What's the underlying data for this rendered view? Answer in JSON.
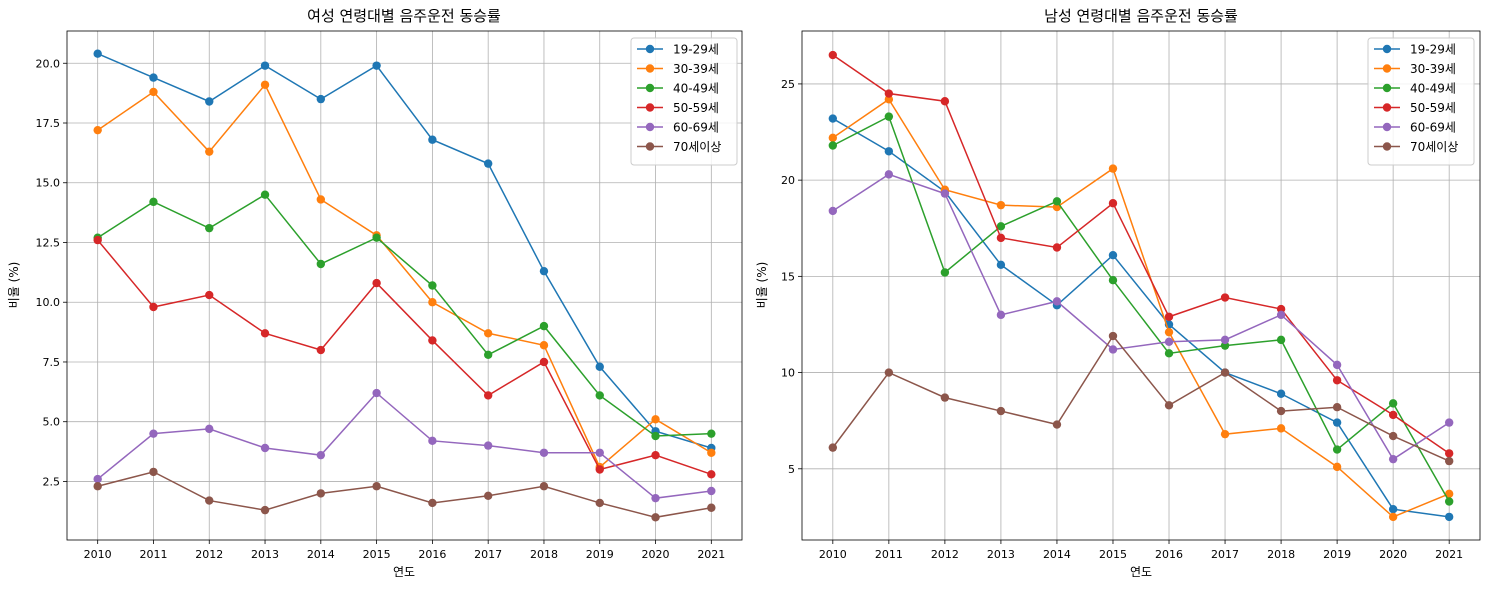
{
  "chart_data": [
    {
      "type": "line",
      "title": "여성 연령대별 음주운전 동승률",
      "xlabel": "연도",
      "ylabel": "비율 (%)",
      "x": [
        2010,
        2011,
        2012,
        2013,
        2014,
        2015,
        2016,
        2017,
        2018,
        2019,
        2020,
        2021
      ],
      "xlim": [
        2009.45,
        2021.55
      ],
      "ylim": [
        0.05,
        21.35
      ],
      "yticks": [
        2.5,
        5.0,
        7.5,
        10.0,
        12.5,
        15.0,
        17.5,
        20.0
      ],
      "ytick_labels": [
        "2.5",
        "5.0",
        "7.5",
        "10.0",
        "12.5",
        "15.0",
        "17.5",
        "20.0"
      ],
      "grid": true,
      "legend_position": "top-right",
      "series": [
        {
          "name": "19-29세",
          "color": "#1f77b4",
          "values": [
            20.4,
            19.4,
            18.4,
            19.9,
            18.5,
            19.9,
            16.8,
            15.8,
            11.3,
            7.3,
            4.6,
            3.9
          ]
        },
        {
          "name": "30-39세",
          "color": "#ff7f0e",
          "values": [
            17.2,
            18.8,
            16.3,
            19.1,
            14.3,
            12.8,
            10.0,
            8.7,
            8.2,
            3.1,
            5.1,
            3.7
          ]
        },
        {
          "name": "40-49세",
          "color": "#2ca02c",
          "values": [
            12.7,
            14.2,
            13.1,
            14.5,
            11.6,
            12.7,
            10.7,
            7.8,
            9.0,
            6.1,
            4.4,
            4.5
          ]
        },
        {
          "name": "50-59세",
          "color": "#d62728",
          "values": [
            12.6,
            9.8,
            10.3,
            8.7,
            8.0,
            10.8,
            8.4,
            6.1,
            7.5,
            3.0,
            3.6,
            2.8
          ]
        },
        {
          "name": "60-69세",
          "color": "#9467bd",
          "values": [
            2.6,
            4.5,
            4.7,
            3.9,
            3.6,
            6.2,
            4.2,
            4.0,
            3.7,
            3.7,
            1.8,
            2.1
          ]
        },
        {
          "name": "70세이상",
          "color": "#8c564b",
          "values": [
            2.3,
            2.9,
            1.7,
            1.3,
            2.0,
            2.3,
            1.6,
            1.9,
            2.3,
            1.6,
            1.0,
            1.4
          ]
        }
      ]
    },
    {
      "type": "line",
      "title": "남성 연령대별 음주운전 동승률",
      "xlabel": "연도",
      "ylabel": "비율 (%)",
      "x": [
        2010,
        2011,
        2012,
        2013,
        2014,
        2015,
        2016,
        2017,
        2018,
        2019,
        2020,
        2021
      ],
      "xlim": [
        2009.45,
        2021.55
      ],
      "ylim": [
        1.3,
        27.75
      ],
      "yticks": [
        5,
        10,
        15,
        20,
        25
      ],
      "ytick_labels": [
        "5",
        "10",
        "15",
        "20",
        "25"
      ],
      "grid": true,
      "legend_position": "top-right",
      "series": [
        {
          "name": "19-29세",
          "color": "#1f77b4",
          "values": [
            23.2,
            21.5,
            19.4,
            15.6,
            13.5,
            16.1,
            12.5,
            10.0,
            8.9,
            7.4,
            2.9,
            2.5
          ]
        },
        {
          "name": "30-39세",
          "color": "#ff7f0e",
          "values": [
            22.2,
            24.2,
            19.5,
            18.7,
            18.6,
            20.6,
            12.1,
            6.8,
            7.1,
            5.1,
            2.5,
            3.7
          ]
        },
        {
          "name": "40-49세",
          "color": "#2ca02c",
          "values": [
            21.8,
            23.3,
            15.2,
            17.6,
            18.9,
            14.8,
            11.0,
            11.4,
            11.7,
            6.0,
            8.4,
            3.3
          ]
        },
        {
          "name": "50-59세",
          "color": "#d62728",
          "values": [
            26.5,
            24.5,
            24.1,
            17.0,
            16.5,
            18.8,
            12.9,
            13.9,
            13.3,
            9.6,
            7.8,
            5.8
          ]
        },
        {
          "name": "60-69세",
          "color": "#9467bd",
          "values": [
            18.4,
            20.3,
            19.3,
            13.0,
            13.7,
            11.2,
            11.6,
            11.7,
            13.0,
            10.4,
            5.5,
            7.4
          ]
        },
        {
          "name": "70세이상",
          "color": "#8c564b",
          "values": [
            6.1,
            10.0,
            8.7,
            8.0,
            7.3,
            11.9,
            8.3,
            10.0,
            8.0,
            8.2,
            6.7,
            5.4
          ]
        }
      ]
    }
  ]
}
